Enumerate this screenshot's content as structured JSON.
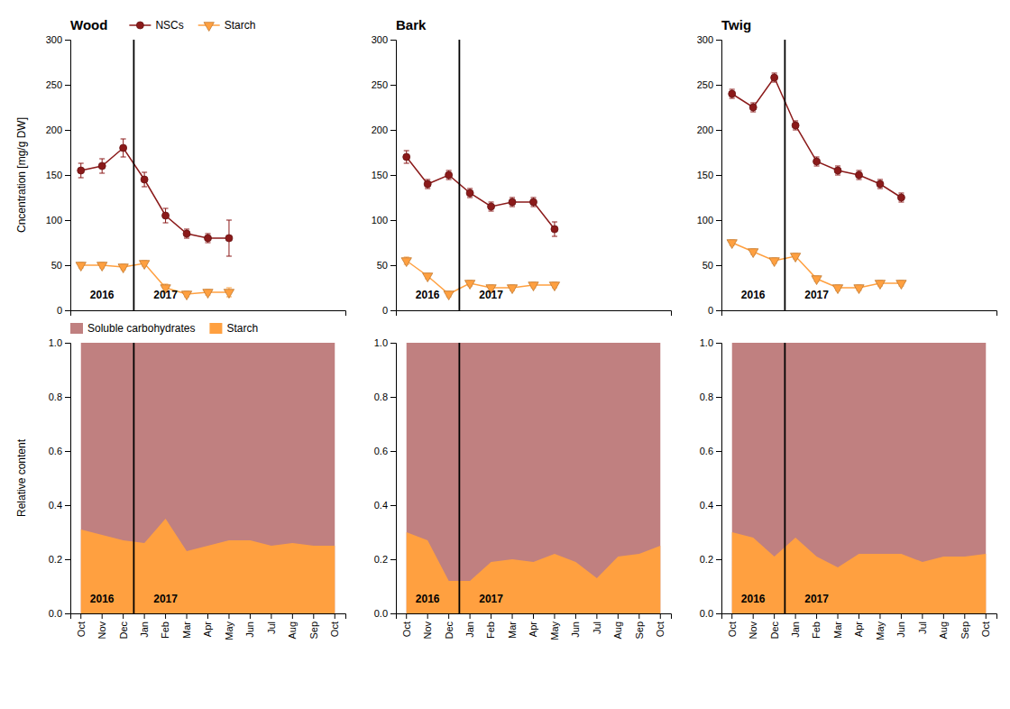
{
  "chart_data": [
    {
      "type": "line",
      "title": "Wood",
      "y_label": "Cncentration [mg/g DW]",
      "categories": [
        "Oct",
        "Nov",
        "Dec",
        "Jan",
        "Feb",
        "Mar",
        "Apr",
        "May",
        "Jun",
        "Jul",
        "Aug",
        "Sep",
        "Oct"
      ],
      "series": [
        {
          "name": "NSCs",
          "color": "#8B1A1A",
          "marker": "circle",
          "line_style": "solid",
          "values": [
            155,
            160,
            180,
            145,
            105,
            85,
            80,
            80,
            null,
            null,
            null,
            null,
            null
          ],
          "errors": [
            8,
            8,
            10,
            8,
            8,
            5,
            5,
            20,
            null,
            null,
            null,
            null,
            null
          ]
        },
        {
          "name": "Starch",
          "color": "#FFA040",
          "marker": "triangle-down",
          "line_style": "solid",
          "values": [
            50,
            50,
            48,
            52,
            25,
            18,
            20,
            20,
            null,
            null,
            null,
            null,
            null
          ],
          "errors": [
            3,
            3,
            3,
            3,
            4,
            3,
            3,
            5,
            null,
            null,
            null,
            null,
            null
          ]
        }
      ],
      "ylim": [
        0,
        300
      ],
      "yticks": [
        0,
        50,
        100,
        150,
        200,
        250,
        300
      ],
      "tick_labels": "y",
      "legend": "upper left",
      "annotations": [
        {
          "text": "2016",
          "x": 1,
          "y": 13
        },
        {
          "text": "2017",
          "x": 4,
          "y": 13
        },
        {
          "type": "vline",
          "x": 2.5
        }
      ]
    },
    {
      "type": "area",
      "y_label": "Relative content",
      "categories": [
        "Oct",
        "Nov",
        "Dec",
        "Jan",
        "Feb",
        "Mar",
        "Apr",
        "May",
        "Jun",
        "Jul",
        "Aug",
        "Sep",
        "Oct"
      ],
      "series": [
        {
          "name": "Soluble carbohydrates",
          "color": "#C08080",
          "values": [
            1.0,
            1.0,
            1.0,
            1.0,
            1.0,
            1.0,
            1.0,
            1.0,
            1.0,
            1.0,
            1.0,
            1.0,
            1.0
          ]
        },
        {
          "name": "Starch",
          "color": "#FFA040",
          "values": [
            0.31,
            0.29,
            0.27,
            0.26,
            0.35,
            0.23,
            0.25,
            0.27,
            0.27,
            0.25,
            0.26,
            0.25,
            0.25
          ]
        }
      ],
      "ylim": [
        0.0,
        1.0
      ],
      "yticks": [
        {
          "value": 0,
          "label": "0.0"
        },
        0.2,
        0.4,
        0.6,
        0.8,
        {
          "value": 1,
          "label": "1.0"
        }
      ],
      "legend": "upper left",
      "annotations": [
        {
          "text": "2016",
          "x": 1,
          "y": 0.04
        },
        {
          "text": "2017",
          "x": 4,
          "y": 0.04
        },
        {
          "type": "vline",
          "x": 2.5
        }
      ]
    },
    {
      "type": "line",
      "title": "Bark",
      "categories": [
        "Oct",
        "Nov",
        "Dec",
        "Jan",
        "Feb",
        "Mar",
        "Apr",
        "May",
        "Jun",
        "Jul",
        "Aug",
        "Sep",
        "Oct"
      ],
      "series": [
        {
          "color": "#8B1A1A",
          "marker": "circle",
          "line_style": "solid",
          "values": [
            170,
            140,
            150,
            130,
            115,
            120,
            120,
            90,
            null,
            null,
            null,
            null,
            null
          ],
          "errors": [
            7,
            5,
            5,
            5,
            5,
            5,
            5,
            8,
            null,
            null,
            null,
            null,
            null
          ]
        },
        {
          "color": "#FFA040",
          "marker": "triangle-down",
          "line_style": "solid",
          "values": [
            55,
            38,
            18,
            30,
            25,
            25,
            28,
            28,
            null,
            null,
            null,
            null,
            null
          ],
          "errors": [
            4,
            3,
            3,
            3,
            3,
            3,
            3,
            3,
            null,
            null,
            null,
            null,
            null
          ]
        }
      ],
      "ylim": [
        0,
        300
      ],
      "yticks": [
        0,
        50,
        100,
        150,
        200,
        250,
        300
      ],
      "tick_labels": "y",
      "annotations": [
        {
          "text": "2016",
          "x": 1,
          "y": 13
        },
        {
          "text": "2017",
          "x": 4,
          "y": 13
        },
        {
          "type": "vline",
          "x": 2.5
        }
      ]
    },
    {
      "type": "area",
      "categories": [
        "Oct",
        "Nov",
        "Dec",
        "Jan",
        "Feb",
        "Mar",
        "Apr",
        "May",
        "Jun",
        "Jul",
        "Aug",
        "Sep",
        "Oct"
      ],
      "series": [
        {
          "color": "#C08080",
          "values": [
            1.0,
            1.0,
            1.0,
            1.0,
            1.0,
            1.0,
            1.0,
            1.0,
            1.0,
            1.0,
            1.0,
            1.0,
            1.0
          ]
        },
        {
          "color": "#FFA040",
          "values": [
            0.3,
            0.27,
            0.12,
            0.12,
            0.19,
            0.2,
            0.19,
            0.22,
            0.19,
            0.13,
            0.21,
            0.22,
            0.25
          ]
        }
      ],
      "ylim": [
        0.0,
        1.0
      ],
      "yticks": [
        {
          "value": 0,
          "label": "0.0"
        },
        0.2,
        0.4,
        0.6,
        0.8,
        {
          "value": 1,
          "label": "1.0"
        }
      ],
      "annotations": [
        {
          "text": "2016",
          "x": 1,
          "y": 0.04
        },
        {
          "text": "2017",
          "x": 4,
          "y": 0.04
        },
        {
          "type": "vline",
          "x": 2.5
        }
      ]
    },
    {
      "type": "line",
      "title": "Twig",
      "categories": [
        "Oct",
        "Nov",
        "Dec",
        "Jan",
        "Feb",
        "Mar",
        "Apr",
        "May",
        "Jun",
        "Jul",
        "Aug",
        "Sep",
        "Oct"
      ],
      "series": [
        {
          "color": "#8B1A1A",
          "marker": "circle",
          "line_style": "solid",
          "values": [
            240,
            225,
            258,
            205,
            165,
            155,
            150,
            140,
            125,
            null,
            null,
            null,
            null
          ],
          "errors": [
            5,
            5,
            5,
            5,
            5,
            5,
            5,
            5,
            5,
            null,
            null,
            null,
            null
          ]
        },
        {
          "color": "#FFA040",
          "marker": "triangle-down",
          "line_style": "solid",
          "values": [
            75,
            65,
            55,
            60,
            35,
            25,
            25,
            30,
            30,
            null,
            null,
            null,
            null
          ],
          "errors": [
            3,
            3,
            3,
            3,
            3,
            3,
            3,
            3,
            3,
            null,
            null,
            null,
            null
          ]
        }
      ],
      "ylim": [
        0,
        300
      ],
      "yticks": [
        0,
        50,
        100,
        150,
        200,
        250,
        300
      ],
      "tick_labels": "y",
      "annotations": [
        {
          "text": "2016",
          "x": 1,
          "y": 13
        },
        {
          "text": "2017",
          "x": 4,
          "y": 13
        },
        {
          "type": "vline",
          "x": 2.5
        }
      ]
    },
    {
      "type": "area",
      "categories": [
        "Oct",
        "Nov",
        "Dec",
        "Jan",
        "Feb",
        "Mar",
        "Apr",
        "May",
        "Jun",
        "Jul",
        "Aug",
        "Sep",
        "Oct"
      ],
      "series": [
        {
          "color": "#C08080",
          "values": [
            1.0,
            1.0,
            1.0,
            1.0,
            1.0,
            1.0,
            1.0,
            1.0,
            1.0,
            1.0,
            1.0,
            1.0,
            1.0
          ]
        },
        {
          "color": "#FFA040",
          "values": [
            0.3,
            0.28,
            0.21,
            0.28,
            0.21,
            0.17,
            0.22,
            0.22,
            0.22,
            0.19,
            0.21,
            0.21,
            0.22
          ]
        }
      ],
      "ylim": [
        0.0,
        1.0
      ],
      "yticks": [
        {
          "value": 0,
          "label": "0.0"
        },
        0.2,
        0.4,
        0.6,
        0.8,
        {
          "value": 1,
          "label": "1.0"
        }
      ],
      "annotations": [
        {
          "text": "2016",
          "x": 1,
          "y": 0.04
        },
        {
          "text": "2017",
          "x": 4,
          "y": 0.04
        },
        {
          "type": "vline",
          "x": 2.5
        }
      ]
    }
  ]
}
